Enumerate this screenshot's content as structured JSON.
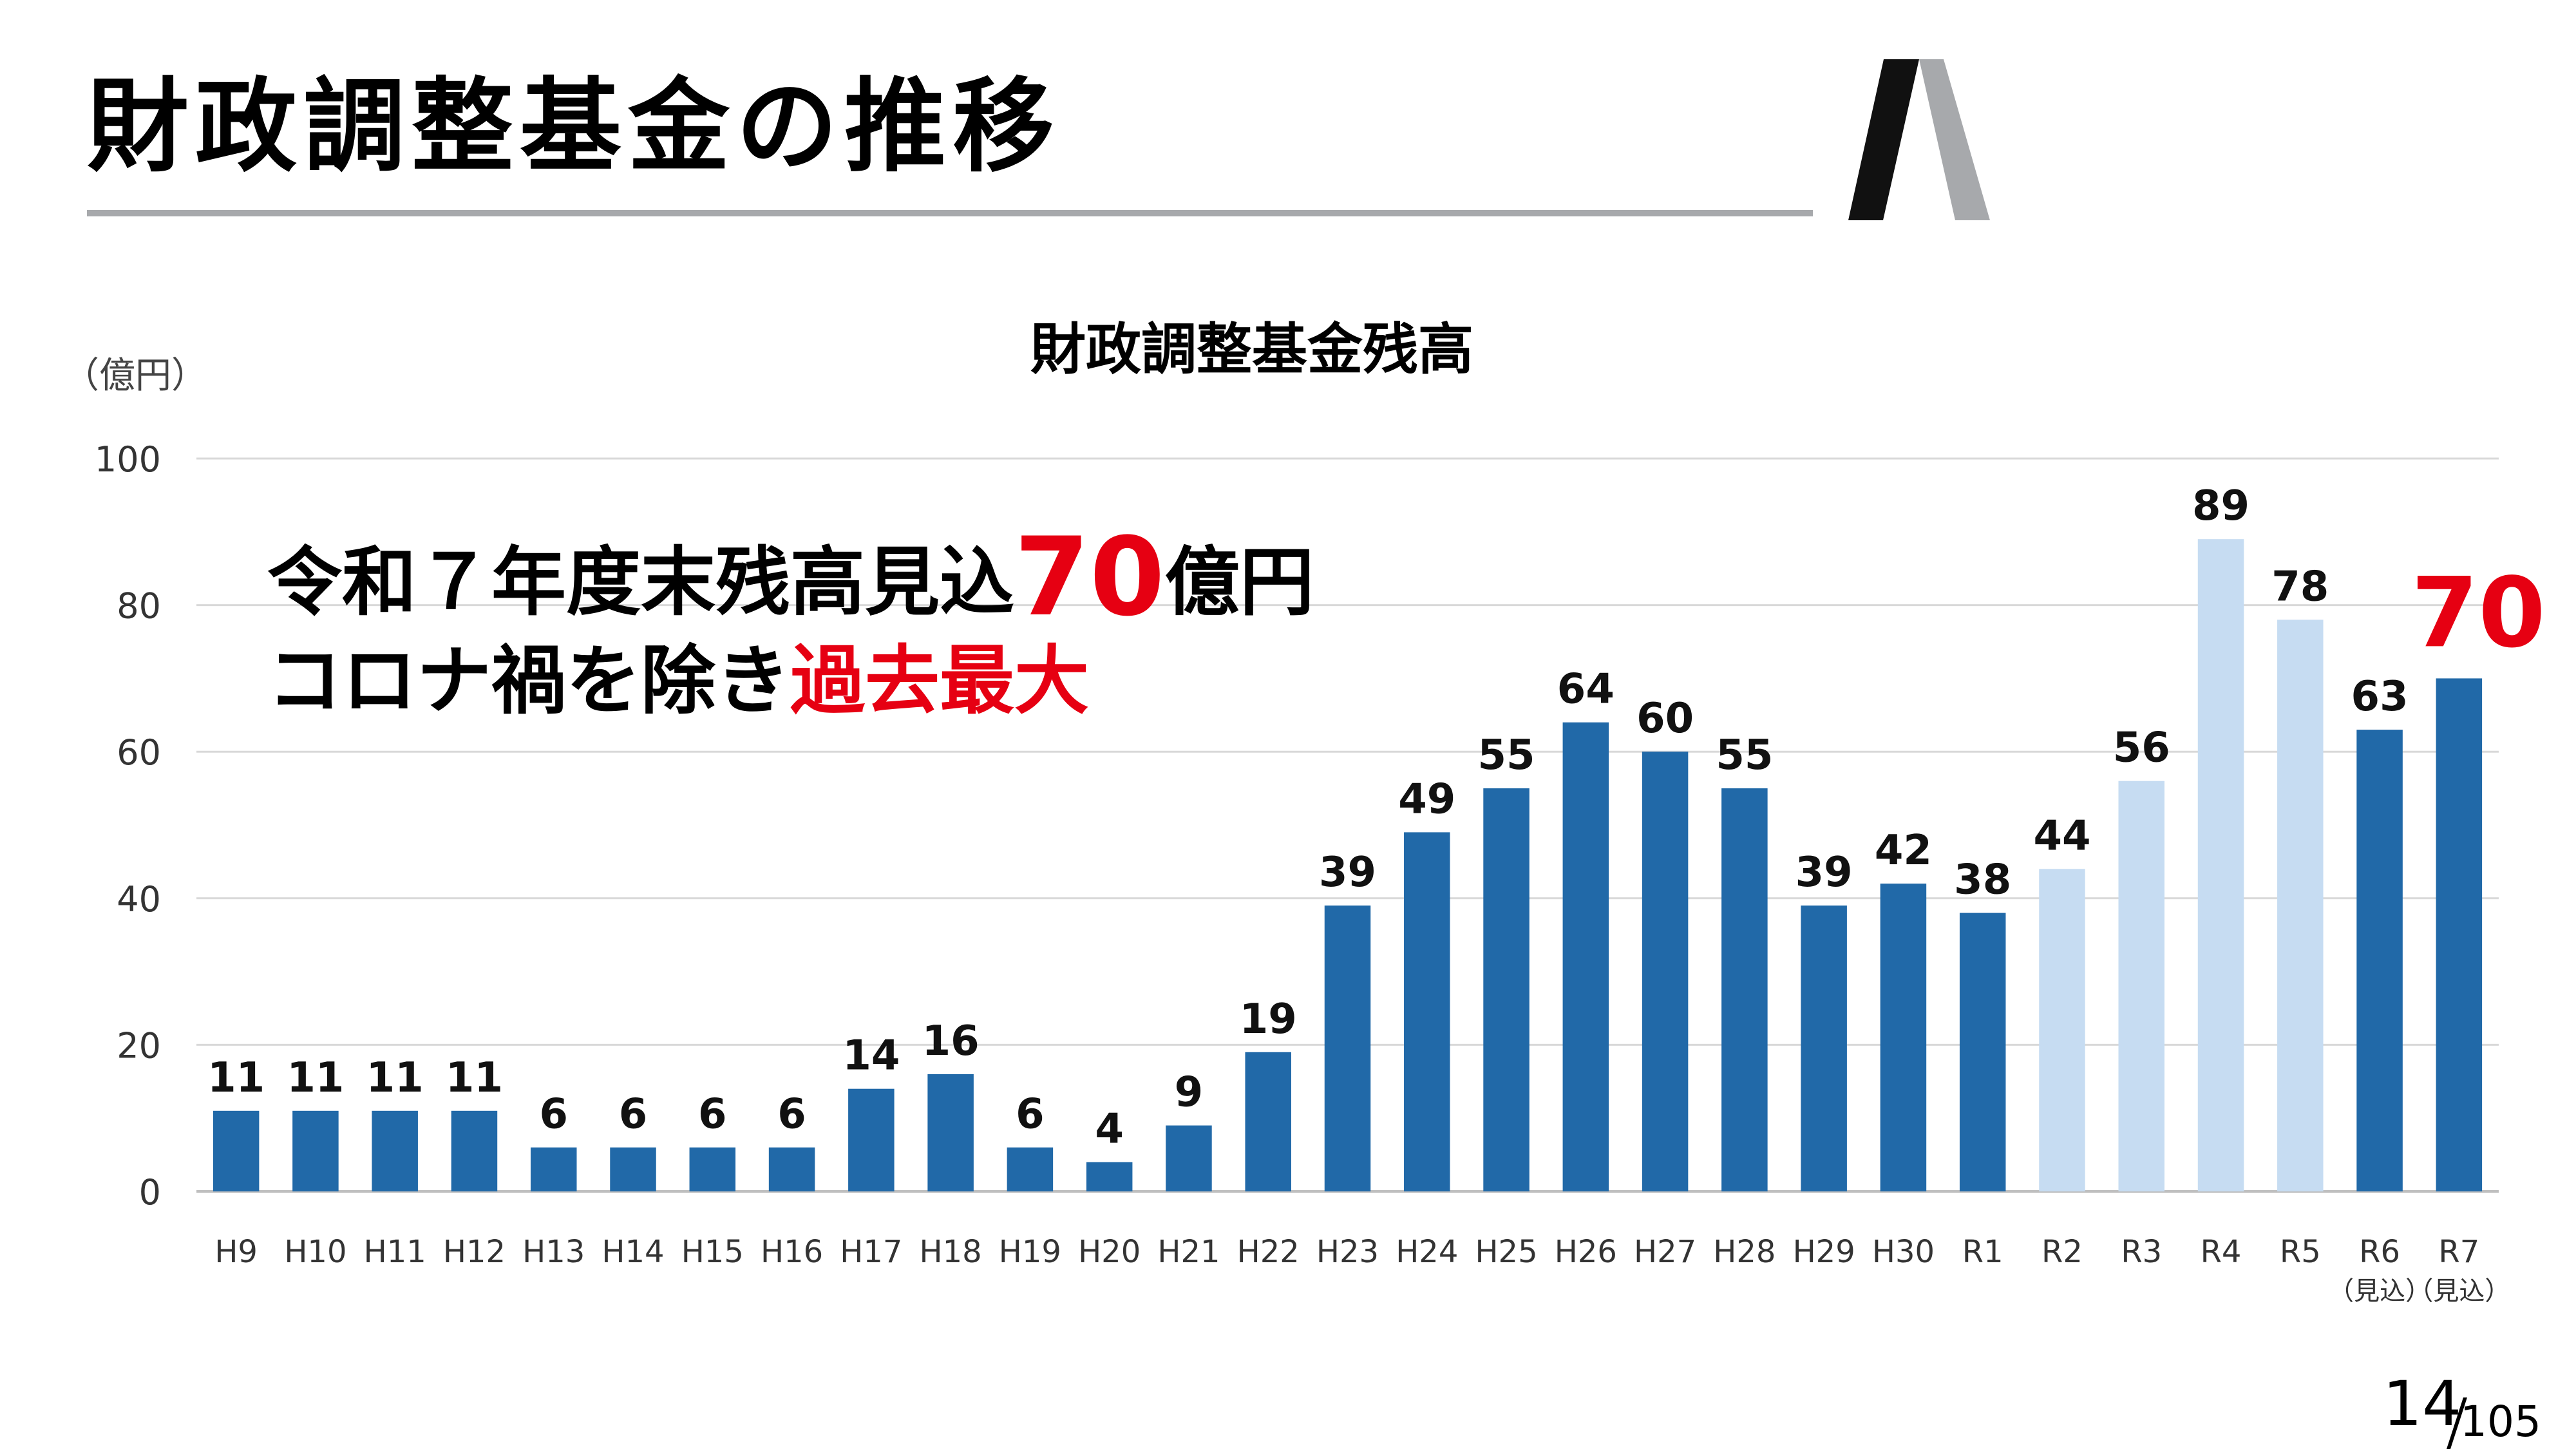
{
  "slide": {
    "title": "財政調整基金の推移",
    "page_number": "14",
    "page_total": "105"
  },
  "callout": {
    "line1_prefix": "令和７年度末残高見込",
    "line1_value": "70",
    "line1_suffix": "億円",
    "line2_prefix": "コロナ禍を除き",
    "line2_highlight": "過去最大"
  },
  "colors": {
    "bar_dark": "#2169a8",
    "bar_light": "#c6dcf2",
    "highlight_red": "#e60012",
    "grid": "#d9d9d9",
    "title_rule": "#a7a9ac"
  },
  "chart_data": {
    "type": "bar",
    "title": "財政調整基金残高",
    "ylabel": "（億円）",
    "xlabel": "",
    "ylim": [
      0,
      100
    ],
    "yticks": [
      0,
      20,
      40,
      60,
      80,
      100
    ],
    "grid": true,
    "categories": [
      "H9",
      "H10",
      "H11",
      "H12",
      "H13",
      "H14",
      "H15",
      "H16",
      "H17",
      "H18",
      "H19",
      "H20",
      "H21",
      "H22",
      "H23",
      "H24",
      "H25",
      "H26",
      "H27",
      "H28",
      "H29",
      "H30",
      "R1",
      "R2",
      "R3",
      "R4",
      "R5",
      "R6",
      "R7"
    ],
    "category_notes": [
      "",
      "",
      "",
      "",
      "",
      "",
      "",
      "",
      "",
      "",
      "",
      "",
      "",
      "",
      "",
      "",
      "",
      "",
      "",
      "",
      "",
      "",
      "",
      "",
      "",
      "",
      "",
      "（見込）",
      "（見込）"
    ],
    "values": [
      11,
      11,
      11,
      11,
      6,
      6,
      6,
      6,
      14,
      16,
      6,
      4,
      9,
      19,
      39,
      49,
      55,
      64,
      60,
      55,
      39,
      42,
      38,
      44,
      56,
      89,
      78,
      63,
      70
    ],
    "light_bar_indices": [
      23,
      24,
      25,
      26
    ],
    "highlighted_label_index": 28
  }
}
